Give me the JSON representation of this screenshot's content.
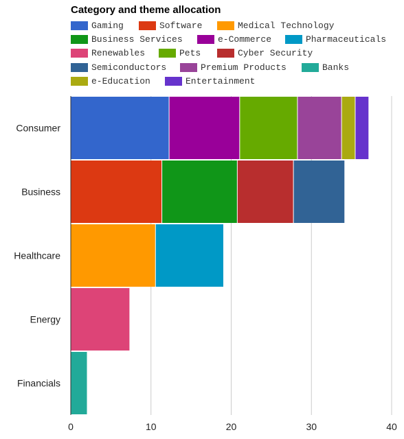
{
  "colors": {
    "Gaming": "#3366cc",
    "Software": "#dc3912",
    "Medical Technology": "#ff9900",
    "Business Services": "#109618",
    "e-Commerce": "#990099",
    "Pharmaceuticals": "#0099c6",
    "Renewables": "#dd4477",
    "Pets": "#66aa00",
    "Cyber Security": "#b82e2e",
    "Semiconductors": "#316395",
    "Premium Products": "#994499",
    "Banks": "#22aa99",
    "e-Education": "#aaaa11",
    "Entertainment": "#6633cc"
  },
  "chart_data": {
    "type": "bar",
    "orientation": "horizontal",
    "stacked": true,
    "title": "Category and theme allocation",
    "xlabel": "",
    "ylabel": "",
    "xlim": [
      0,
      40
    ],
    "xticks": [
      "0",
      "10",
      "20",
      "30",
      "40"
    ],
    "grid": true,
    "legend_position": "top",
    "categories": [
      "Consumer",
      "Business",
      "Healthcare",
      "Energy",
      "Financials"
    ],
    "series": [
      {
        "name": "Gaming",
        "values": [
          12.3,
          0,
          0,
          0,
          0
        ]
      },
      {
        "name": "Software",
        "values": [
          0,
          11.4,
          0,
          0,
          0
        ]
      },
      {
        "name": "Medical Technology",
        "values": [
          0,
          0,
          10.6,
          0,
          0
        ]
      },
      {
        "name": "Business Services",
        "values": [
          0,
          9.4,
          0,
          0,
          0
        ]
      },
      {
        "name": "e-Commerce",
        "values": [
          8.8,
          0,
          0,
          0,
          0
        ]
      },
      {
        "name": "Pharmaceuticals",
        "values": [
          0,
          0,
          8.5,
          0,
          0
        ]
      },
      {
        "name": "Renewables",
        "values": [
          0,
          0,
          0,
          7.4,
          0
        ]
      },
      {
        "name": "Pets",
        "values": [
          7.2,
          0,
          0,
          0,
          0
        ]
      },
      {
        "name": "Cyber Security",
        "values": [
          0,
          7.0,
          0,
          0,
          0
        ]
      },
      {
        "name": "Semiconductors",
        "values": [
          0,
          6.4,
          0,
          0,
          0
        ]
      },
      {
        "name": "Premium Products",
        "values": [
          5.5,
          0,
          0,
          0,
          0
        ]
      },
      {
        "name": "Banks",
        "values": [
          0,
          0,
          0,
          0,
          2.1
        ]
      },
      {
        "name": "e-Education",
        "values": [
          1.7,
          0,
          0,
          0,
          0
        ]
      },
      {
        "name": "Entertainment",
        "values": [
          1.7,
          0,
          0,
          0,
          0
        ]
      }
    ]
  }
}
